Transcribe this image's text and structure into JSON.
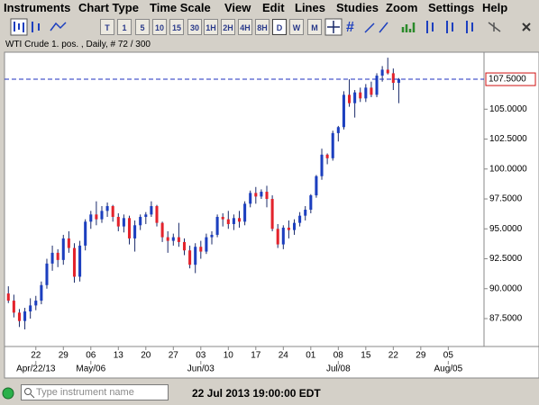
{
  "menu": [
    "Instruments",
    "Chart Type",
    "Time Scale",
    "View",
    "Edit",
    "Lines",
    "Studies",
    "Zoom",
    "Settings",
    "Help"
  ],
  "toolbar": [
    "T",
    "1",
    "5",
    "10",
    "15",
    "30",
    "1H",
    "2H",
    "4H",
    "8H",
    "D",
    "W",
    "M"
  ],
  "chart_header": "WTI Crude 1. pos. , Daily, # 72 / 300",
  "chart_data": {
    "type": "candlestick",
    "x": [
      0,
      1,
      2,
      3,
      4,
      5,
      6,
      7,
      8,
      9,
      10,
      11,
      12,
      13,
      14,
      15,
      16,
      17,
      18,
      19,
      20,
      21,
      22,
      23,
      24,
      25,
      26,
      27,
      28,
      29,
      30,
      31,
      32,
      33,
      34,
      35,
      36,
      37,
      38,
      39,
      40,
      41,
      42,
      43,
      44,
      45,
      46,
      47,
      48,
      49,
      50,
      51,
      52,
      53,
      54,
      55,
      56,
      57,
      58,
      59,
      60,
      61,
      62,
      63,
      64,
      65,
      66,
      67,
      68,
      69,
      70,
      71
    ],
    "open": [
      89.6,
      89.0,
      88.0,
      87.3,
      88.1,
      88.6,
      89.0,
      90.3,
      92.1,
      93.0,
      92.4,
      94.2,
      93.4,
      91.0,
      93.6,
      95.6,
      96.2,
      95.8,
      96.5,
      96.9,
      96.0,
      95.2,
      95.9,
      94.2,
      95.3,
      96.0,
      96.2,
      96.9,
      95.5,
      94.3,
      94.0,
      94.3,
      93.9,
      93.2,
      92.0,
      93.5,
      93.1,
      94.3,
      94.5,
      96.0,
      95.8,
      95.4,
      95.9,
      95.6,
      97.1,
      98.0,
      97.7,
      98.1,
      97.5,
      95.0,
      93.7,
      95.1,
      94.9,
      95.5,
      96.1,
      96.6,
      97.8,
      99.4,
      101.2,
      100.9,
      103.0,
      103.5,
      106.2,
      105.5,
      106.4,
      105.9,
      106.8,
      106.2,
      107.8,
      108.3,
      108.0,
      107.2
    ],
    "high": [
      90.2,
      89.5,
      88.3,
      88.4,
      89.2,
      89.4,
      90.6,
      92.5,
      93.6,
      93.3,
      94.5,
      94.8,
      93.8,
      94.0,
      95.8,
      96.5,
      97.3,
      96.9,
      97.2,
      97.0,
      96.3,
      96.2,
      96.1,
      95.7,
      96.2,
      96.4,
      97.3,
      97.0,
      95.6,
      94.8,
      94.6,
      95.5,
      94.2,
      93.6,
      93.8,
      94.0,
      94.6,
      94.8,
      96.2,
      96.3,
      96.5,
      96.2,
      96.5,
      97.3,
      98.2,
      98.5,
      98.3,
      98.6,
      97.8,
      95.4,
      95.3,
      95.7,
      95.8,
      96.4,
      96.9,
      97.9,
      99.5,
      101.7,
      101.3,
      103.2,
      103.6,
      106.5,
      107.5,
      106.6,
      106.8,
      107.1,
      107.3,
      108.0,
      108.6,
      109.3,
      108.4,
      107.6
    ],
    "low": [
      88.8,
      87.6,
      86.8,
      86.6,
      87.5,
      88.2,
      88.7,
      90.0,
      91.5,
      91.8,
      92.0,
      93.0,
      90.5,
      90.6,
      93.2,
      95.0,
      95.3,
      95.5,
      96.0,
      95.6,
      94.8,
      94.7,
      93.7,
      93.1,
      94.9,
      95.4,
      96.0,
      95.2,
      93.9,
      93.0,
      93.6,
      93.5,
      92.8,
      91.7,
      91.3,
      92.5,
      92.9,
      93.7,
      94.3,
      95.2,
      95.0,
      94.9,
      95.1,
      95.3,
      96.8,
      97.1,
      97.5,
      96.8,
      94.8,
      93.4,
      93.3,
      94.2,
      94.5,
      95.2,
      95.7,
      96.3,
      97.6,
      99.1,
      100.4,
      100.7,
      102.3,
      103.3,
      105.2,
      104.3,
      105.6,
      105.6,
      106.0,
      106.0,
      107.3,
      107.9,
      106.6,
      105.5
    ],
    "close": [
      89.0,
      88.0,
      87.3,
      88.1,
      88.6,
      89.0,
      90.3,
      92.1,
      93.0,
      92.4,
      94.2,
      93.4,
      91.0,
      93.6,
      95.6,
      96.2,
      95.8,
      96.5,
      96.9,
      96.0,
      95.2,
      95.9,
      94.2,
      95.3,
      96.0,
      96.2,
      96.9,
      95.5,
      94.3,
      94.0,
      94.3,
      93.9,
      93.2,
      92.0,
      93.5,
      93.1,
      94.3,
      94.5,
      96.0,
      95.8,
      95.4,
      95.9,
      95.6,
      97.1,
      98.0,
      97.7,
      98.1,
      97.5,
      95.0,
      93.7,
      95.1,
      94.9,
      95.5,
      96.1,
      96.6,
      97.8,
      99.4,
      101.2,
      100.9,
      103.0,
      103.5,
      106.2,
      105.5,
      106.4,
      105.9,
      106.8,
      106.2,
      107.8,
      108.3,
      108.0,
      107.2,
      107.5
    ],
    "up_color": "#1c3fbf",
    "down_color": "#e3232c",
    "wick_color": "#1a2a6a",
    "xlim": [
      -0.7,
      86.5
    ],
    "ylim": [
      85.17,
      109.76
    ],
    "yticks": [
      {
        "value": 87.5,
        "label": "87.5000"
      },
      {
        "value": 90,
        "label": "90.0000"
      },
      {
        "value": 92.5,
        "label": "92.5000"
      },
      {
        "value": 95,
        "label": "95.0000"
      },
      {
        "value": 97.5,
        "label": "97.5000"
      },
      {
        "value": 100,
        "label": "100.0000"
      },
      {
        "value": 102.5,
        "label": "102.5000"
      },
      {
        "value": 105,
        "label": "105.0000"
      }
    ],
    "price_line": {
      "value": 107.5,
      "label": "107.5000",
      "color": "#1c2fbf",
      "label_color": "#d01010"
    },
    "xticks": [
      {
        "value": 5,
        "label": "22"
      },
      {
        "value": 10,
        "label": "29"
      },
      {
        "value": 15,
        "label": "06"
      },
      {
        "value": 20,
        "label": "13"
      },
      {
        "value": 25,
        "label": "20"
      },
      {
        "value": 30,
        "label": "27"
      },
      {
        "value": 35,
        "label": "03"
      },
      {
        "value": 40,
        "label": "10"
      },
      {
        "value": 45,
        "label": "17"
      },
      {
        "value": 50,
        "label": "24"
      },
      {
        "value": 55,
        "label": "01"
      },
      {
        "value": 60,
        "label": "08"
      },
      {
        "value": 65,
        "label": "15"
      },
      {
        "value": 70,
        "label": "22"
      },
      {
        "value": 75,
        "label": "29"
      },
      {
        "value": 80,
        "label": "05"
      }
    ],
    "month_ticks": [
      {
        "value": 5,
        "label": "Apr/22/13"
      },
      {
        "value": 15,
        "label": "May/06"
      },
      {
        "value": 35,
        "label": "Jun/03"
      },
      {
        "value": 60,
        "label": "Jul/08"
      },
      {
        "value": 80,
        "label": "Aug/05"
      }
    ]
  },
  "status": {
    "placeholder": "Type instrument name",
    "timestamp": "22 Jul 2013 19:00:00 EDT"
  }
}
